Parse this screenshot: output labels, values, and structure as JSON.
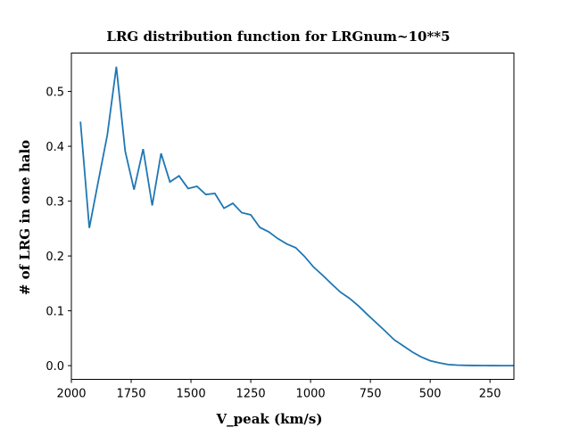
{
  "chart_data": {
    "type": "line",
    "title": "LRG distribution function for LRGnum~10**5",
    "xlabel": "V_peak (km/s)",
    "ylabel": "# of LRG in one halo",
    "xlim": [
      2000,
      150
    ],
    "ylim": [
      -0.025,
      0.57
    ],
    "x_inverted": true,
    "grid": false,
    "xticks": [
      2000,
      1750,
      1500,
      1250,
      1000,
      750,
      500,
      250
    ],
    "xtick_labels": [
      "2000",
      "1750",
      "1500",
      "1250",
      "1000",
      "750",
      "500",
      "250"
    ],
    "yticks": [
      0.0,
      0.1,
      0.2,
      0.3,
      0.4,
      0.5
    ],
    "ytick_labels": [
      "0.0",
      "0.1",
      "0.2",
      "0.3",
      "0.4",
      "0.5"
    ],
    "line_color": "#1f77b4",
    "series": [
      {
        "x": [
          1962,
          1925,
          1888,
          1850,
          1812,
          1775,
          1738,
          1700,
          1662,
          1625,
          1588,
          1550,
          1512,
          1475,
          1438,
          1400,
          1362,
          1325,
          1288,
          1250,
          1212,
          1175,
          1138,
          1100,
          1062,
          1025,
          988,
          950,
          912,
          875,
          838,
          800,
          762,
          725,
          688,
          650,
          612,
          575,
          538,
          500,
          462,
          425,
          388,
          350,
          312,
          275,
          238,
          200,
          150
        ],
        "y": [
          0.445,
          0.251,
          0.335,
          0.42,
          0.545,
          0.391,
          0.321,
          0.395,
          0.292,
          0.387,
          0.335,
          0.346,
          0.323,
          0.327,
          0.312,
          0.314,
          0.287,
          0.296,
          0.279,
          0.275,
          0.252,
          0.244,
          0.232,
          0.222,
          0.215,
          0.199,
          0.18,
          0.165,
          0.149,
          0.134,
          0.123,
          0.109,
          0.093,
          0.078,
          0.063,
          0.047,
          0.036,
          0.025,
          0.016,
          0.009,
          0.005,
          0.002,
          0.001,
          0.0005,
          0.0003,
          0.0002,
          0.0001,
          0.0,
          0.0
        ]
      }
    ]
  }
}
